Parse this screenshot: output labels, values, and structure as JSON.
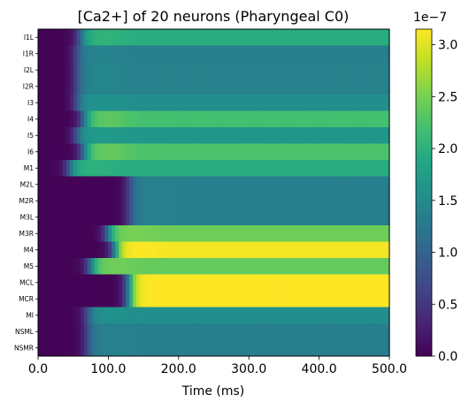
{
  "chart_data": {
    "type": "heatmap",
    "title": "[Ca2+] of 20 neurons (Pharyngeal C0)",
    "xlabel": "Time (ms)",
    "ylabel": "",
    "xlim": [
      0,
      500
    ],
    "x_ticks": [
      0,
      100,
      200,
      300,
      400,
      500
    ],
    "x_tick_labels": [
      "0.0",
      "100.0",
      "200.0",
      "300.0",
      "400.0",
      "500.0"
    ],
    "colormap": "viridis",
    "colorbar": {
      "range": [
        0,
        3.15e-07
      ],
      "ticks": [
        0,
        5e-08,
        1e-07,
        1.5e-07,
        2e-07,
        2.5e-07,
        3e-07
      ],
      "tick_labels": [
        "0.0",
        "0.5",
        "1.0",
        "1.5",
        "2.0",
        "2.5",
        "3.0"
      ],
      "offset_label": "1e−7"
    },
    "neurons": [
      {
        "name": "I1L",
        "rise_ms": 60,
        "plateau": 1.95e-07,
        "overshoot": 8e-09
      },
      {
        "name": "I1R",
        "rise_ms": 55,
        "plateau": 1.35e-07,
        "overshoot": 5e-09
      },
      {
        "name": "I2L",
        "rise_ms": 55,
        "plateau": 1.38e-07,
        "overshoot": 5e-09
      },
      {
        "name": "I2R",
        "rise_ms": 55,
        "plateau": 1.38e-07,
        "overshoot": 5e-09
      },
      {
        "name": "I3",
        "rise_ms": 55,
        "plateau": 1.55e-07,
        "overshoot": 5e-09
      },
      {
        "name": "I4",
        "rise_ms": 65,
        "plateau": 2.2e-07,
        "overshoot": 1.5e-08
      },
      {
        "name": "I5",
        "rise_ms": 55,
        "plateau": 1.65e-07,
        "overshoot": 5e-09
      },
      {
        "name": "I6",
        "rise_ms": 65,
        "plateau": 2.25e-07,
        "overshoot": 1.5e-08
      },
      {
        "name": "M1",
        "rise_ms": 45,
        "plateau": 1.95e-07,
        "overshoot": 5e-09
      },
      {
        "name": "M2L",
        "rise_ms": 130,
        "plateau": 1.35e-07,
        "overshoot": 3e-09
      },
      {
        "name": "M2R",
        "rise_ms": 130,
        "plateau": 1.35e-07,
        "overshoot": 3e-09
      },
      {
        "name": "M3L",
        "rise_ms": 130,
        "plateau": 1.35e-07,
        "overshoot": 3e-09
      },
      {
        "name": "M3R",
        "rise_ms": 100,
        "plateau": 2.45e-07,
        "overshoot": 5e-09
      },
      {
        "name": "M4",
        "rise_ms": 110,
        "plateau": 3.1e-07,
        "overshoot": 5e-09
      },
      {
        "name": "M5",
        "rise_ms": 75,
        "plateau": 2.4e-07,
        "overshoot": 5e-09
      },
      {
        "name": "MCL",
        "rise_ms": 130,
        "plateau": 3.15e-07,
        "overshoot": 0.0
      },
      {
        "name": "MCR",
        "rise_ms": 130,
        "plateau": 3.15e-07,
        "overshoot": 0.0
      },
      {
        "name": "MI",
        "rise_ms": 70,
        "plateau": 1.55e-07,
        "overshoot": 3e-09
      },
      {
        "name": "NSML",
        "rise_ms": 70,
        "plateau": 1.35e-07,
        "overshoot": 3e-09
      },
      {
        "name": "NSMR",
        "rise_ms": 70,
        "plateau": 1.35e-07,
        "overshoot": 3e-09
      }
    ]
  }
}
